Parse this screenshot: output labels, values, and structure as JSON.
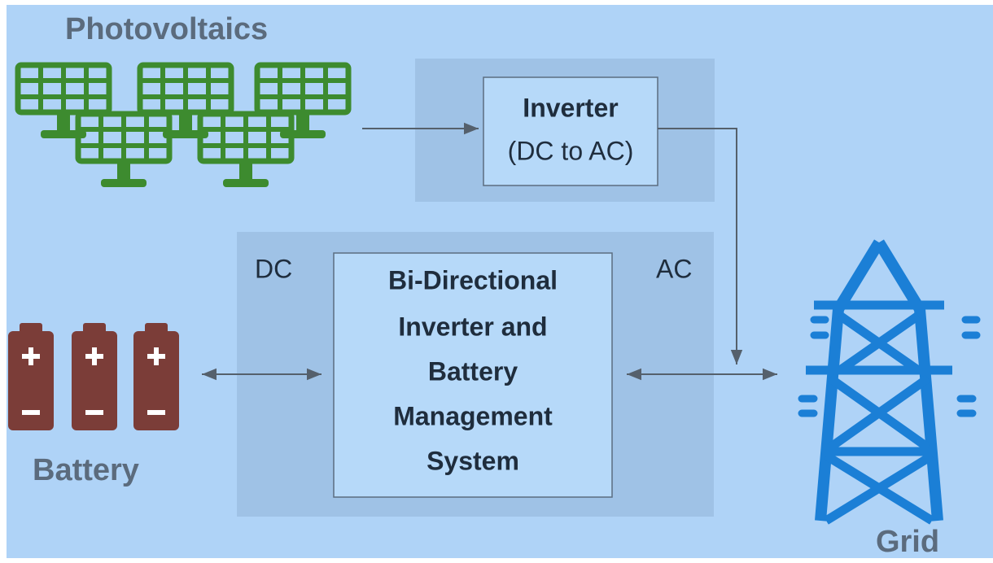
{
  "photovoltaics": "Photovoltaics",
  "inverter": {
    "title": "Inverter",
    "subtitle": "(DC to AC)"
  },
  "bms": {
    "lines": [
      "Bi-Directional",
      "Inverter and",
      "Battery",
      "Management",
      "System"
    ],
    "left_label": "DC",
    "right_label": "AC"
  },
  "battery": "Battery",
  "grid": "Grid"
}
